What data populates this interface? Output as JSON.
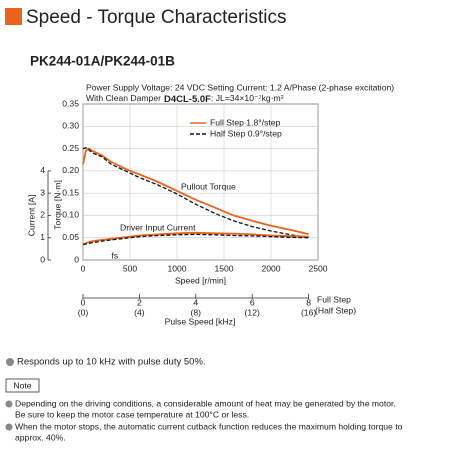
{
  "header": {
    "title": "Speed - Torque Characteristics",
    "model": "PK244-01A/PK244-01B",
    "conditions": "Power Supply Voltage: 24 VDC  Setting Current: 1.2 A/Phase (2-phase excitation)",
    "damper_prefix": "With Clean Damper",
    "damper_model": "D4CL-5.0F",
    "inertia": ": JL=34×10⁻⁷kg·m²"
  },
  "chart_data": {
    "type": "line",
    "x": [
      0,
      30,
      60,
      100,
      200,
      300,
      400,
      500,
      600,
      800,
      1000,
      1200,
      1400,
      1600,
      1800,
      2000,
      2200,
      2400
    ],
    "series": [
      {
        "name": "Full Step 1.8°/step",
        "color": "#e8641e",
        "dashed": false,
        "values": [
          0.215,
          0.245,
          0.25,
          0.245,
          0.235,
          0.22,
          0.21,
          0.2,
          0.192,
          0.175,
          0.155,
          0.135,
          0.118,
          0.1,
          0.088,
          0.077,
          0.068,
          0.058
        ]
      },
      {
        "name": "Half Step 0.9°/step",
        "color": "#111111",
        "dashed": true,
        "values": [
          0.25,
          0.252,
          0.248,
          0.24,
          0.232,
          0.215,
          0.205,
          0.195,
          0.185,
          0.168,
          0.148,
          0.125,
          0.105,
          0.088,
          0.075,
          0.065,
          0.057,
          0.05
        ]
      },
      {
        "color": "#e8641e",
        "dashed": false,
        "axis": "y2",
        "values": [
          0.7,
          0.75,
          0.8,
          0.85,
          0.9,
          0.95,
          1.0,
          1.05,
          1.1,
          1.15,
          1.2,
          1.22,
          1.2,
          1.18,
          1.15,
          1.1,
          1.07,
          1.05
        ]
      },
      {
        "color": "#111111",
        "dashed": true,
        "axis": "y2",
        "values": [
          0.7,
          0.72,
          0.75,
          0.78,
          0.85,
          0.9,
          0.95,
          1.0,
          1.05,
          1.1,
          1.13,
          1.15,
          1.13,
          1.1,
          1.08,
          1.05,
          1.02,
          1.0
        ]
      }
    ],
    "xlabel": "Speed [r/min]",
    "xlim": [
      0,
      2500
    ],
    "xticks": [
      0,
      500,
      1000,
      1500,
      2000,
      2500
    ],
    "ylabel": "Torque [N·m]",
    "ylim": [
      0,
      0.35
    ],
    "yticks": [
      0,
      0.05,
      {
        "value": 0.1,
        "label": "0.10"
      },
      0.15,
      {
        "value": 0.2,
        "label": "0.20"
      },
      0.25,
      {
        "value": 0.3,
        "label": "0.30"
      },
      0.35
    ],
    "y2label": "Current [A]",
    "y2lim": [
      0,
      7
    ],
    "y2ticks": [
      0,
      1,
      2,
      3,
      4
    ],
    "x2label": "Pulse Speed [kHz]",
    "x2lim": [
      0,
      8.333
    ],
    "x2ticks": [
      0,
      2,
      4,
      6,
      8
    ],
    "x2name": "Full Step",
    "x3lim": [
      0,
      16.667
    ],
    "x3ticks": [
      {
        "value": 0,
        "label": "(0)"
      },
      {
        "value": 4,
        "label": "(4)"
      },
      {
        "value": 8,
        "label": "(8)"
      },
      {
        "value": 12,
        "label": "(12)"
      },
      {
        "value": 16,
        "label": "(16)"
      }
    ],
    "x3name": "(Half Step)",
    "annotations": {
      "pullout": "Pullout Torque",
      "current": "Driver Input Current",
      "fs": "fs"
    },
    "grid": true,
    "legend": "upper right"
  },
  "bullet": "Responds up to 10 kHz with pulse duty 50%.",
  "note_label": "Note",
  "notes": [
    [
      "Depending on the driving conditions, a considerable amount of heat may be generated by the motor.",
      "Be sure to keep the motor case temperature at 100°C or less."
    ],
    [
      "When the motor stops, the automatic current cutback function reduces the maximum holding torque to",
      "approx. 40%."
    ]
  ]
}
